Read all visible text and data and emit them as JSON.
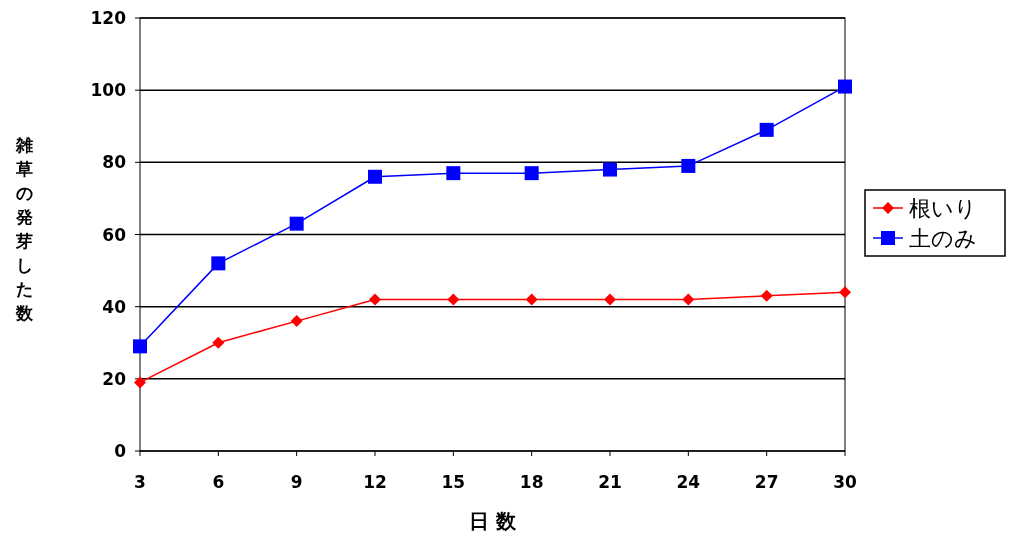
{
  "chart_data": {
    "type": "line",
    "xlabel": "日 数",
    "ylabel": "雑草の発芽した数",
    "categories": [
      "3",
      "6",
      "9",
      "12",
      "15",
      "18",
      "21",
      "24",
      "27",
      "30"
    ],
    "series": [
      {
        "name": "根いり",
        "color": "#ff0000",
        "marker": "diamond",
        "values": [
          19,
          30,
          36,
          42,
          42,
          42,
          42,
          42,
          43,
          44
        ]
      },
      {
        "name": "土のみ",
        "color": "#0000ff",
        "marker": "square",
        "values": [
          29,
          52,
          63,
          76,
          77,
          77,
          78,
          79,
          89,
          101
        ]
      }
    ],
    "ylim": [
      0,
      120
    ],
    "yticks": [
      0,
      20,
      40,
      60,
      80,
      100,
      120
    ],
    "grid": "y",
    "legend": "right"
  }
}
